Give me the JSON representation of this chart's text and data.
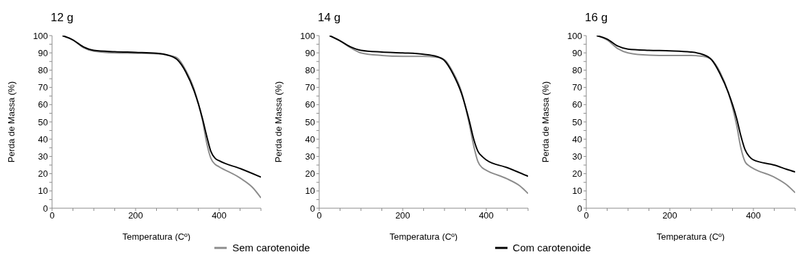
{
  "chart_data": [
    {
      "type": "line",
      "title": "12 g",
      "xlabel": "Temperatura (Cº)",
      "ylabel": "Perda de Massa (%)",
      "xlim": [
        0,
        500
      ],
      "ylim": [
        0,
        100
      ],
      "xticks": [
        0,
        {
          "value": 50,
          "label": null
        },
        {
          "value": 100,
          "label": null
        },
        {
          "value": 150,
          "label": null
        },
        200,
        {
          "value": 250,
          "label": null
        },
        {
          "value": 300,
          "label": null
        },
        {
          "value": 350,
          "label": null
        },
        400,
        {
          "value": 450,
          "label": null
        },
        {
          "value": 500,
          "label": null
        }
      ],
      "yticks": [
        0,
        {
          "value": 5,
          "label": null
        },
        10,
        {
          "value": 15,
          "label": null
        },
        20,
        {
          "value": 25,
          "label": null
        },
        30,
        {
          "value": 35,
          "label": null
        },
        40,
        {
          "value": 45,
          "label": null
        },
        50,
        {
          "value": 55,
          "label": null
        },
        60,
        {
          "value": 65,
          "label": null
        },
        70,
        {
          "value": 75,
          "label": null
        },
        80,
        {
          "value": 85,
          "label": null
        },
        90,
        {
          "value": 95,
          "label": null
        },
        100
      ],
      "legend": "bottom",
      "line_style": "solid",
      "marker": "none",
      "series": [
        {
          "name": "Sem carotenoide",
          "color": "#8c8c8c",
          "x": [
            25,
            50,
            75,
            100,
            150,
            200,
            250,
            280,
            300,
            320,
            340,
            360,
            370,
            380,
            390,
            400,
            450,
            480,
            500
          ],
          "values": [
            100,
            97.5,
            93,
            91,
            90,
            89.8,
            89.5,
            88.5,
            87,
            80,
            69,
            51,
            38,
            29,
            25.5,
            24,
            17.5,
            12,
            6
          ]
        },
        {
          "name": "Com carotenoide",
          "color": "#000000",
          "x": [
            25,
            50,
            75,
            100,
            150,
            200,
            250,
            280,
            300,
            320,
            340,
            360,
            370,
            380,
            390,
            400,
            450,
            500
          ],
          "values": [
            100,
            97.5,
            93.5,
            91.5,
            90.7,
            90.3,
            89.8,
            88.5,
            86,
            79,
            68,
            52,
            42,
            33,
            29,
            27.5,
            23,
            18
          ]
        }
      ]
    },
    {
      "type": "line",
      "title": "14 g",
      "xlabel": "Temperatura (Cº)",
      "ylabel": "Perda de Massa (%)",
      "xlim": [
        0,
        500
      ],
      "ylim": [
        0,
        100
      ],
      "xticks": [
        0,
        {
          "value": 50,
          "label": null
        },
        {
          "value": 100,
          "label": null
        },
        {
          "value": 150,
          "label": null
        },
        200,
        {
          "value": 250,
          "label": null
        },
        {
          "value": 300,
          "label": null
        },
        {
          "value": 350,
          "label": null
        },
        400,
        {
          "value": 450,
          "label": null
        },
        {
          "value": 500,
          "label": null
        }
      ],
      "yticks": [
        0,
        {
          "value": 5,
          "label": null
        },
        10,
        {
          "value": 15,
          "label": null
        },
        20,
        {
          "value": 25,
          "label": null
        },
        30,
        {
          "value": 35,
          "label": null
        },
        40,
        {
          "value": 45,
          "label": null
        },
        50,
        {
          "value": 55,
          "label": null
        },
        60,
        {
          "value": 65,
          "label": null
        },
        70,
        {
          "value": 75,
          "label": null
        },
        80,
        {
          "value": 85,
          "label": null
        },
        90,
        {
          "value": 95,
          "label": null
        },
        100
      ],
      "line_style": "solid",
      "marker": "none",
      "series": [
        {
          "color": "#8c8c8c",
          "x": [
            25,
            50,
            75,
            100,
            150,
            200,
            250,
            280,
            300,
            320,
            340,
            360,
            370,
            380,
            390,
            400,
            450,
            480,
            500
          ],
          "values": [
            100,
            97,
            93,
            90,
            88.5,
            88,
            88,
            87.5,
            86,
            79,
            68,
            48,
            36,
            27,
            23.5,
            22,
            17,
            13,
            8.5
          ]
        },
        {
          "color": "#000000",
          "x": [
            25,
            50,
            75,
            100,
            150,
            200,
            250,
            280,
            300,
            320,
            340,
            360,
            370,
            380,
            390,
            400,
            450,
            500
          ],
          "values": [
            100,
            97,
            93.5,
            91.5,
            90.5,
            90,
            89.2,
            88,
            85.5,
            78,
            67,
            50,
            40,
            33,
            30,
            28,
            23.5,
            18.5
          ]
        }
      ]
    },
    {
      "type": "line",
      "title": "16 g",
      "xlabel": "Temperatura (Cº)",
      "ylabel": "Perda de Massa (%)",
      "xlim": [
        0,
        500
      ],
      "ylim": [
        0,
        100
      ],
      "xticks": [
        0,
        {
          "value": 50,
          "label": null
        },
        {
          "value": 100,
          "label": null
        },
        {
          "value": 150,
          "label": null
        },
        200,
        {
          "value": 250,
          "label": null
        },
        {
          "value": 300,
          "label": null
        },
        {
          "value": 350,
          "label": null
        },
        400,
        {
          "value": 450,
          "label": null
        },
        {
          "value": 500,
          "label": null
        }
      ],
      "yticks": [
        0,
        {
          "value": 5,
          "label": null
        },
        10,
        {
          "value": 15,
          "label": null
        },
        20,
        {
          "value": 25,
          "label": null
        },
        30,
        {
          "value": 35,
          "label": null
        },
        40,
        {
          "value": 45,
          "label": null
        },
        50,
        {
          "value": 55,
          "label": null
        },
        60,
        {
          "value": 65,
          "label": null
        },
        70,
        {
          "value": 75,
          "label": null
        },
        80,
        {
          "value": 85,
          "label": null
        },
        90,
        {
          "value": 95,
          "label": null
        },
        100
      ],
      "line_style": "solid",
      "marker": "none",
      "series": [
        {
          "color": "#8c8c8c",
          "x": [
            25,
            50,
            75,
            100,
            150,
            200,
            250,
            280,
            300,
            320,
            340,
            360,
            370,
            380,
            390,
            400,
            450,
            480,
            500
          ],
          "values": [
            100,
            97.5,
            92.5,
            90,
            88.7,
            88.5,
            88.5,
            88,
            86,
            79,
            67,
            48,
            35,
            27,
            24.5,
            23,
            18,
            13.5,
            9
          ]
        },
        {
          "color": "#000000",
          "x": [
            25,
            50,
            75,
            100,
            150,
            200,
            250,
            280,
            300,
            320,
            340,
            360,
            370,
            380,
            390,
            400,
            450,
            480,
            500
          ],
          "values": [
            100,
            98,
            94,
            92.2,
            91.5,
            91.2,
            90.5,
            89,
            86,
            78,
            67,
            52,
            42,
            34,
            30,
            28,
            25,
            22.5,
            21
          ]
        }
      ]
    }
  ]
}
